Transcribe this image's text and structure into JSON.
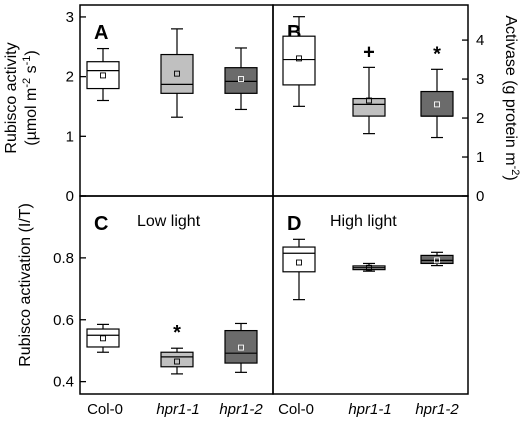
{
  "colors": {
    "col0": "#ffffff",
    "hpr1_1": "#c0c0c0",
    "hpr1_2": "#6b6b6b",
    "stroke": "#000000"
  },
  "axes": {
    "left_top_title": "Rubisco activity",
    "left_top_unit_parts": [
      "(µmol m",
      "-2",
      " s",
      "-1",
      ")"
    ],
    "right_top_title_parts": [
      "Activase (g protein m",
      "-2",
      ")"
    ],
    "left_bottom_title": "Rubisco activation (I/T)"
  },
  "categories": [
    "Col-0",
    "hpr1-1",
    "hpr1-2"
  ],
  "chart_data": [
    {
      "type": "box",
      "panel": "A",
      "note": "",
      "ylabel": "Rubisco activity (µmol m-2 s-1)",
      "ylim": [
        0,
        3.2
      ],
      "yticks": [
        0,
        1,
        2,
        3
      ],
      "ytick_side": "left",
      "categories": [
        "Col-0",
        "hpr1-1",
        "hpr1-2"
      ],
      "boxes": [
        {
          "min": 1.6,
          "q1": 1.8,
          "median": 2.1,
          "q3": 2.25,
          "max": 2.47,
          "mean": 2.02,
          "sig": ""
        },
        {
          "min": 1.32,
          "q1": 1.72,
          "median": 1.87,
          "q3": 2.37,
          "max": 2.8,
          "mean": 2.05,
          "sig": ""
        },
        {
          "min": 1.45,
          "q1": 1.72,
          "median": 1.92,
          "q3": 2.15,
          "max": 2.48,
          "mean": 1.96,
          "sig": ""
        }
      ]
    },
    {
      "type": "box",
      "panel": "B",
      "note": "",
      "ylabel": "Activase (g protein m-2)",
      "ylim": [
        0,
        4.9
      ],
      "yticks": [
        0,
        1,
        2,
        3,
        4
      ],
      "ytick_side": "right",
      "categories": [
        "Col-0",
        "hpr1-1",
        "hpr1-2"
      ],
      "boxes": [
        {
          "min": 2.3,
          "q1": 2.85,
          "median": 3.5,
          "q3": 4.1,
          "max": 4.6,
          "mean": 3.53,
          "sig": ""
        },
        {
          "min": 1.6,
          "q1": 2.05,
          "median": 2.35,
          "q3": 2.5,
          "max": 3.3,
          "mean": 2.45,
          "sig": "+"
        },
        {
          "min": 1.5,
          "q1": 2.05,
          "median": 2.05,
          "q3": 2.68,
          "max": 3.25,
          "mean": 2.35,
          "sig": "*"
        }
      ]
    },
    {
      "type": "box",
      "panel": "C",
      "note": "Low light",
      "ylabel": "Rubisco activation (I/T)",
      "ylim": [
        0.36,
        1.0
      ],
      "yticks": [
        0.4,
        0.6,
        0.8,
        1.0
      ],
      "ytick_labels": [
        "0.4",
        "0.6",
        "0.8",
        ""
      ],
      "ytick_side": "left",
      "categories": [
        "Col-0",
        "hpr1-1",
        "hpr1-2"
      ],
      "boxes": [
        {
          "min": 0.495,
          "q1": 0.512,
          "median": 0.55,
          "q3": 0.57,
          "max": 0.585,
          "mean": 0.54,
          "sig": ""
        },
        {
          "min": 0.425,
          "q1": 0.448,
          "median": 0.48,
          "q3": 0.495,
          "max": 0.508,
          "mean": 0.465,
          "sig": "*"
        },
        {
          "min": 0.43,
          "q1": 0.46,
          "median": 0.492,
          "q3": 0.565,
          "max": 0.588,
          "mean": 0.51,
          "sig": ""
        }
      ]
    },
    {
      "type": "box",
      "panel": "D",
      "note": "High light",
      "ylabel": "",
      "ylim": [
        0.36,
        1.0
      ],
      "yticks": [
        0.4,
        0.6,
        0.8,
        1.0
      ],
      "ytick_side": "none",
      "categories": [
        "Col-0",
        "hpr1-1",
        "hpr1-2"
      ],
      "boxes": [
        {
          "min": 0.665,
          "q1": 0.755,
          "median": 0.815,
          "q3": 0.835,
          "max": 0.86,
          "mean": 0.785,
          "sig": ""
        },
        {
          "min": 0.757,
          "q1": 0.762,
          "median": 0.768,
          "q3": 0.774,
          "max": 0.782,
          "mean": 0.768,
          "sig": ""
        },
        {
          "min": 0.775,
          "q1": 0.782,
          "median": 0.792,
          "q3": 0.808,
          "max": 0.818,
          "mean": 0.792,
          "sig": ""
        }
      ]
    }
  ]
}
